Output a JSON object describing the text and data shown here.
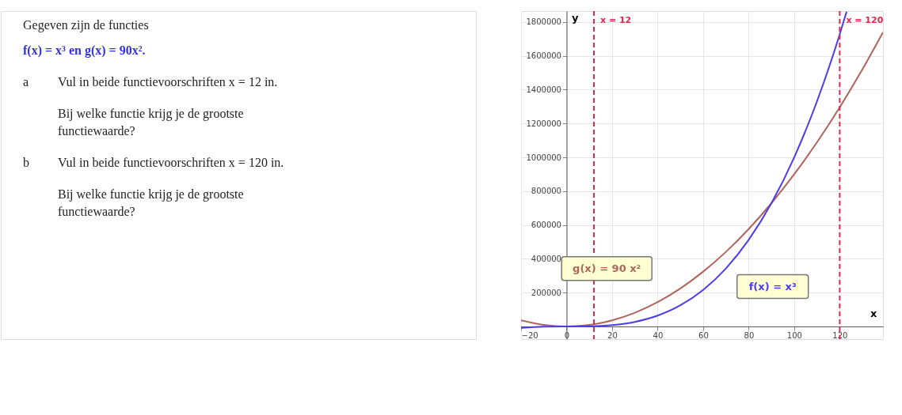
{
  "chart_data": {
    "type": "line",
    "title": "Gegeven zijn de functies",
    "subtitle": "f(x) = x³ en g(x) = 90x².",
    "annotations": [
      "a",
      "Vul in beide functievoorschriften x = 12 in.",
      "Bij welke functie krijg je de grootste functiewaarde?",
      "b",
      "Vul in beide functievoorschriften x = 120 in.",
      "Bij welke functie krijg je de grootste functiewaarde?"
    ],
    "xlabel": "x",
    "ylabel": "y",
    "series": [
      {
        "name": "g(x) = 90 x²",
        "color": "#b0645a",
        "x": [
          -20,
          -10,
          0,
          10,
          20,
          30,
          40,
          50,
          60,
          70,
          80,
          90,
          100,
          110,
          120,
          130,
          139
        ],
        "values": [
          36000,
          9000,
          0,
          9000,
          36000,
          81000,
          144000,
          225000,
          324000,
          441000,
          576000,
          729000,
          900000,
          1089000,
          1296000,
          1521000,
          1739000
        ]
      },
      {
        "name": "f(x) = x³",
        "color": "#4b3bf0",
        "x": [
          -20,
          -10,
          0,
          10,
          20,
          30,
          40,
          50,
          60,
          70,
          80,
          90,
          100,
          110,
          120,
          123
        ],
        "values": [
          -8000,
          -1000,
          0,
          1000,
          8000,
          27000,
          64000,
          125000,
          216000,
          343000,
          512000,
          729000,
          1000000,
          1331000,
          1728000,
          1861000
        ]
      }
    ],
    "xlim": [
      -20,
      139
    ],
    "ylim": [
      -75000,
      1865000
    ],
    "xticks": [
      -20,
      0,
      20,
      40,
      60,
      80,
      100,
      120
    ],
    "yticks": [
      200000,
      400000,
      600000,
      800000,
      1000000,
      1200000,
      1400000,
      1600000,
      1800000
    ],
    "ref_lines": [
      {
        "axis": "x",
        "value": 12,
        "label": "x = 12",
        "color": "#e0284f",
        "line_style": "dashed"
      },
      {
        "axis": "x",
        "value": 120,
        "label": "x = 120",
        "color": "#e0284f",
        "line_style": "dashed"
      }
    ],
    "grid": true,
    "legend": false,
    "marker": "none",
    "line_style": "solid"
  }
}
